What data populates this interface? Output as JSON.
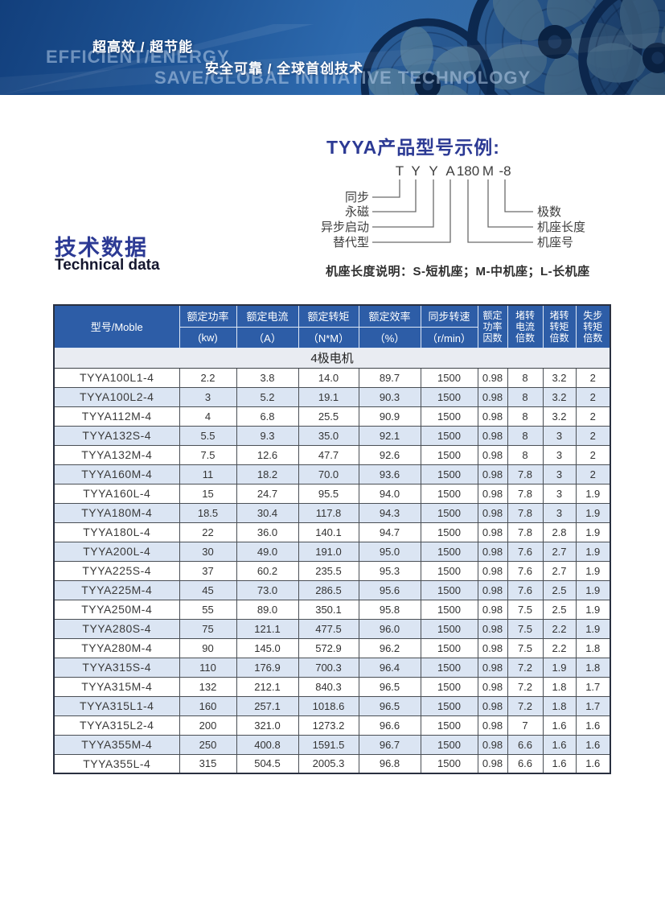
{
  "banner": {
    "cn1": "超高效 / 超节能",
    "en1": "EFFICIENT/ENERGY",
    "cn2": "安全可靠 / 全球首创技术",
    "en2": "SAVE/GLOBAL INITIATIVE TECHNOLOGY"
  },
  "model_example": {
    "title": "TYYA产品型号示例:",
    "code_parts": [
      "T",
      "Y",
      "Y",
      "A",
      "180",
      "M",
      "-8"
    ],
    "left_labels": [
      "同步",
      "永磁",
      "异步启动",
      "替代型"
    ],
    "right_labels": [
      "极数",
      "机座长度",
      "机座号"
    ],
    "note": "机座长度说明：S-短机座；M-中机座；L-长机座"
  },
  "section": {
    "title_cn": "技术数据",
    "title_en": "Technical data"
  },
  "table": {
    "model_header": "型号/Moble",
    "value_cols": [
      {
        "title": "额定功率",
        "unit": "(kw)"
      },
      {
        "title": "额定电流",
        "unit": "（A）"
      },
      {
        "title": "额定转矩",
        "unit": "（N*M）"
      },
      {
        "title": "额定效率",
        "unit": "（%）"
      },
      {
        "title": "同步转速",
        "unit": "（r/min）"
      }
    ],
    "factor_cols": [
      "额定\n功率\n因数",
      "堵转\n电流\n倍数",
      "堵转\n转矩\n倍数",
      "失步\n转矩\n倍数"
    ],
    "group_header": "4极电机",
    "rows": [
      [
        "TYYA100L1-4",
        "2.2",
        "3.8",
        "14.0",
        "89.7",
        "1500",
        "0.98",
        "8",
        "3.2",
        "2"
      ],
      [
        "TYYA100L2-4",
        "3",
        "5.2",
        "19.1",
        "90.3",
        "1500",
        "0.98",
        "8",
        "3.2",
        "2"
      ],
      [
        "TYYA112M-4",
        "4",
        "6.8",
        "25.5",
        "90.9",
        "1500",
        "0.98",
        "8",
        "3.2",
        "2"
      ],
      [
        "TYYA132S-4",
        "5.5",
        "9.3",
        "35.0",
        "92.1",
        "1500",
        "0.98",
        "8",
        "3",
        "2"
      ],
      [
        "TYYA132M-4",
        "7.5",
        "12.6",
        "47.7",
        "92.6",
        "1500",
        "0.98",
        "8",
        "3",
        "2"
      ],
      [
        "TYYA160M-4",
        "11",
        "18.2",
        "70.0",
        "93.6",
        "1500",
        "0.98",
        "7.8",
        "3",
        "2"
      ],
      [
        "TYYA160L-4",
        "15",
        "24.7",
        "95.5",
        "94.0",
        "1500",
        "0.98",
        "7.8",
        "3",
        "1.9"
      ],
      [
        "TYYA180M-4",
        "18.5",
        "30.4",
        "117.8",
        "94.3",
        "1500",
        "0.98",
        "7.8",
        "3",
        "1.9"
      ],
      [
        "TYYA180L-4",
        "22",
        "36.0",
        "140.1",
        "94.7",
        "1500",
        "0.98",
        "7.8",
        "2.8",
        "1.9"
      ],
      [
        "TYYA200L-4",
        "30",
        "49.0",
        "191.0",
        "95.0",
        "1500",
        "0.98",
        "7.6",
        "2.7",
        "1.9"
      ],
      [
        "TYYA225S-4",
        "37",
        "60.2",
        "235.5",
        "95.3",
        "1500",
        "0.98",
        "7.6",
        "2.7",
        "1.9"
      ],
      [
        "TYYA225M-4",
        "45",
        "73.0",
        "286.5",
        "95.6",
        "1500",
        "0.98",
        "7.6",
        "2.5",
        "1.9"
      ],
      [
        "TYYA250M-4",
        "55",
        "89.0",
        "350.1",
        "95.8",
        "1500",
        "0.98",
        "7.5",
        "2.5",
        "1.9"
      ],
      [
        "TYYA280S-4",
        "75",
        "121.1",
        "477.5",
        "96.0",
        "1500",
        "0.98",
        "7.5",
        "2.2",
        "1.9"
      ],
      [
        "TYYA280M-4",
        "90",
        "145.0",
        "572.9",
        "96.2",
        "1500",
        "0.98",
        "7.5",
        "2.2",
        "1.8"
      ],
      [
        "TYYA315S-4",
        "110",
        "176.9",
        "700.3",
        "96.4",
        "1500",
        "0.98",
        "7.2",
        "1.9",
        "1.8"
      ],
      [
        "TYYA315M-4",
        "132",
        "212.1",
        "840.3",
        "96.5",
        "1500",
        "0.98",
        "7.2",
        "1.8",
        "1.7"
      ],
      [
        "TYYA315L1-4",
        "160",
        "257.1",
        "1018.6",
        "96.5",
        "1500",
        "0.98",
        "7.2",
        "1.8",
        "1.7"
      ],
      [
        "TYYA315L2-4",
        "200",
        "321.0",
        "1273.2",
        "96.6",
        "1500",
        "0.98",
        "7",
        "1.6",
        "1.6"
      ],
      [
        "TYYA355M-4",
        "250",
        "400.8",
        "1591.5",
        "96.7",
        "1500",
        "0.98",
        "6.6",
        "1.6",
        "1.6"
      ],
      [
        "TYYA355L-4",
        "315",
        "504.5",
        "2005.3",
        "96.8",
        "1500",
        "0.98",
        "6.6",
        "1.6",
        "1.6"
      ]
    ]
  },
  "colors": {
    "header_blue": "#2d5da7",
    "zebra_blue": "#dbe5f3",
    "group_row_bg": "#e9ecf2",
    "title_blue": "#2c3a94",
    "banner_dark": "#123f7c",
    "banner_light": "#3d7cbe"
  }
}
